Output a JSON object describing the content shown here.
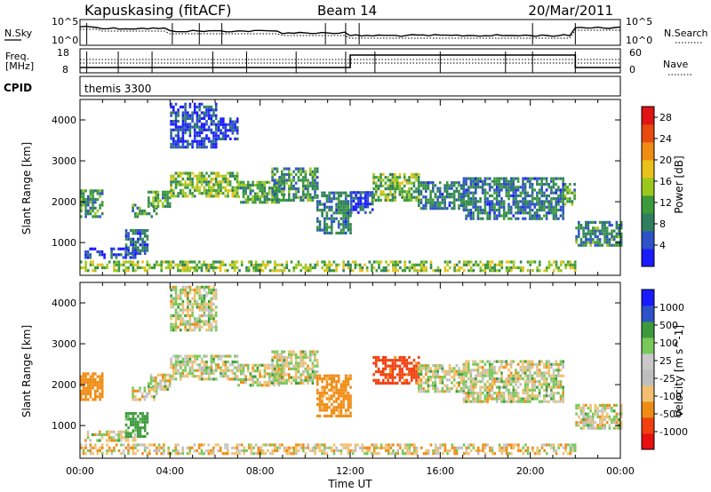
{
  "header": {
    "site": "Kapuskasing (fitACF)",
    "beam": "Beam 14",
    "date": "20/Mar/2011"
  },
  "noise_panel": {
    "left_label": "N.Sky",
    "right_label": "N.Search",
    "ticks": [
      "10^5",
      "10^0"
    ]
  },
  "freq_panel": {
    "left_label_1": "Freq.",
    "left_label_2": "[MHz]",
    "left_ticks": [
      "18",
      "8"
    ],
    "right_label": "Nave",
    "right_ticks": [
      "60",
      "0"
    ]
  },
  "cpid_panel": {
    "label": "CPID",
    "value": "themis 3300"
  },
  "colors": {
    "power": [
      "#1a1aff",
      "#2e52c8",
      "#2f7f5f",
      "#3c9a3c",
      "#9cc81e",
      "#e8c21a",
      "#f08c14",
      "#e84a10",
      "#e01414"
    ],
    "velocity": [
      "#e81010",
      "#f04010",
      "#f08c14",
      "#f0c070",
      "#bebebe",
      "#c8c8c8",
      "#78c85a",
      "#3c9a3c",
      "#2e52c8",
      "#1a1aff"
    ]
  },
  "chart_data": [
    {
      "type": "heatmap",
      "name": "power",
      "ylabel": "Slant Range [km]",
      "yticks": [
        "1000",
        "2000",
        "3000",
        "4000"
      ],
      "ylim": [
        200,
        4500
      ],
      "xlim": [
        0,
        24
      ],
      "colorbar_label": "Power [dB]",
      "colorbar_ticks": [
        "4",
        "8",
        "12",
        "16",
        "20",
        "24",
        "28"
      ],
      "colorbar_range": [
        0,
        30
      ],
      "typical_value_scale": "dB",
      "echo_bands": [
        {
          "start": 0.0,
          "end": 1.0,
          "lower": 1600,
          "upper": 2300,
          "value": 10
        },
        {
          "start": 0.2,
          "end": 2.5,
          "lower": 600,
          "upper": 850,
          "value": 5
        },
        {
          "start": 2.0,
          "end": 3.0,
          "lower": 700,
          "upper": 1300,
          "value": 6
        },
        {
          "start": 2.3,
          "end": 3.4,
          "lower": 1600,
          "upper": 1950,
          "value": 10
        },
        {
          "start": 3.0,
          "end": 4.0,
          "lower": 1850,
          "upper": 2250,
          "value": 11
        },
        {
          "start": 4.0,
          "end": 7.0,
          "lower": 2100,
          "upper": 2700,
          "value": 14
        },
        {
          "start": 4.0,
          "end": 6.0,
          "lower": 3300,
          "upper": 4400,
          "value": 4
        },
        {
          "start": 6.0,
          "end": 7.0,
          "lower": 3500,
          "upper": 4000,
          "value": 4
        },
        {
          "start": 7.0,
          "end": 9.0,
          "lower": 1950,
          "upper": 2500,
          "value": 11
        },
        {
          "start": 8.5,
          "end": 10.5,
          "lower": 2000,
          "upper": 2800,
          "value": 9
        },
        {
          "start": 10.5,
          "end": 12.0,
          "lower": 1200,
          "upper": 2200,
          "value": 8
        },
        {
          "start": 12.0,
          "end": 13.0,
          "lower": 1700,
          "upper": 2200,
          "value": 4
        },
        {
          "start": 13.0,
          "end": 15.0,
          "lower": 2000,
          "upper": 2700,
          "value": 13
        },
        {
          "start": 15.0,
          "end": 17.0,
          "lower": 1800,
          "upper": 2500,
          "value": 8
        },
        {
          "start": 17.0,
          "end": 21.5,
          "lower": 1550,
          "upper": 2600,
          "value": 8
        },
        {
          "start": 21.5,
          "end": 22.0,
          "lower": 1900,
          "upper": 2400,
          "value": 11
        },
        {
          "start": 22.0,
          "end": 24.0,
          "lower": 900,
          "upper": 1500,
          "value": 9
        },
        {
          "start": 0.0,
          "end": 22.0,
          "lower": 280,
          "upper": 560,
          "value": 14
        }
      ]
    },
    {
      "type": "heatmap",
      "name": "velocity",
      "ylabel": "Slant Range [km]",
      "yticks": [
        "1000",
        "2000",
        "3000",
        "4000"
      ],
      "ylim": [
        200,
        4500
      ],
      "xlim": [
        0,
        24
      ],
      "xticks": [
        "00:00",
        "04:00",
        "08:00",
        "12:00",
        "16:00",
        "20:00",
        "00:00"
      ],
      "xlabel": "Time UT",
      "colorbar_label": "Velocity [m s^-1]",
      "colorbar_ticks": [
        "-1000",
        "-500",
        "-100",
        "-25",
        "25",
        "100",
        "500",
        "1000"
      ],
      "echo_bands": [
        {
          "start": 0.0,
          "end": 1.0,
          "lower": 1600,
          "upper": 2300,
          "value": -300
        },
        {
          "start": 0.2,
          "end": 2.5,
          "lower": 600,
          "upper": 850,
          "value": 0
        },
        {
          "start": 2.0,
          "end": 3.0,
          "lower": 700,
          "upper": 1300,
          "value": 200
        },
        {
          "start": 2.3,
          "end": 3.4,
          "lower": 1600,
          "upper": 1950,
          "value": 0
        },
        {
          "start": 3.0,
          "end": 4.0,
          "lower": 1850,
          "upper": 2250,
          "value": 0
        },
        {
          "start": 4.0,
          "end": 7.0,
          "lower": 2100,
          "upper": 2700,
          "value": 0
        },
        {
          "start": 4.0,
          "end": 6.0,
          "lower": 3300,
          "upper": 4400,
          "value": 0
        },
        {
          "start": 7.0,
          "end": 9.0,
          "lower": 1950,
          "upper": 2500,
          "value": 0
        },
        {
          "start": 8.5,
          "end": 10.5,
          "lower": 2000,
          "upper": 2800,
          "value": 0
        },
        {
          "start": 10.5,
          "end": 12.0,
          "lower": 1200,
          "upper": 2200,
          "value": -200
        },
        {
          "start": 13.0,
          "end": 15.0,
          "lower": 2000,
          "upper": 2700,
          "value": -600
        },
        {
          "start": 15.0,
          "end": 17.0,
          "lower": 1800,
          "upper": 2500,
          "value": 0
        },
        {
          "start": 17.0,
          "end": 21.5,
          "lower": 1550,
          "upper": 2600,
          "value": 0
        },
        {
          "start": 22.0,
          "end": 24.0,
          "lower": 900,
          "upper": 1500,
          "value": 0
        },
        {
          "start": 0.0,
          "end": 22.0,
          "lower": 280,
          "upper": 560,
          "value": -50
        }
      ]
    }
  ]
}
